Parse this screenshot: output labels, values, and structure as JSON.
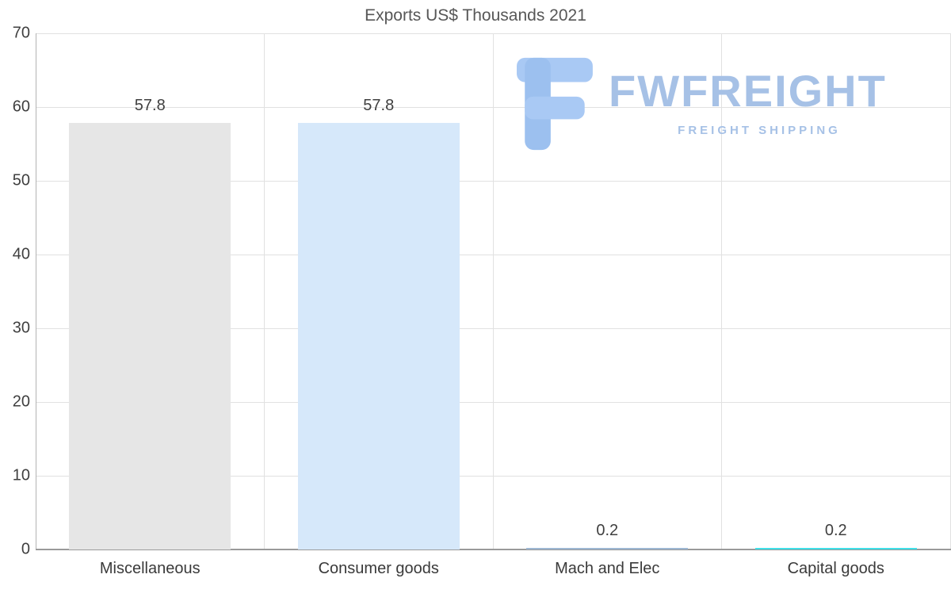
{
  "title": "Exports US$ Thousands 2021",
  "logo": {
    "brand": "FWFREIGHT",
    "tagline": "FREIGHT SHIPPING",
    "color": "#a6c1e6",
    "icon": "stylized-f-freight-icon"
  },
  "chart_data": {
    "type": "bar",
    "title": "Exports US$ Thousands 2021",
    "categories": [
      "Miscellaneous",
      "Consumer goods",
      "Mach and Elec",
      "Capital goods"
    ],
    "values": [
      57.8,
      57.8,
      0.2,
      0.2
    ],
    "value_labels": [
      "57.8",
      "57.8",
      "0.2",
      "0.2"
    ],
    "bar_colors": [
      "#e6e6e6",
      "#d6e8fa",
      "#9db7d2",
      "#3fdfe8"
    ],
    "xlabel": "",
    "ylabel": "",
    "ylim": [
      0,
      70
    ],
    "yticks": [
      0,
      10,
      20,
      30,
      40,
      50,
      60,
      70
    ],
    "grid": true,
    "legend": "none"
  },
  "colors": {
    "gridline": "#e1e1e1",
    "axis": "#9a9a9a",
    "tick_text": "#3f3f3f",
    "title_text": "#575757",
    "background": "#ffffff"
  }
}
